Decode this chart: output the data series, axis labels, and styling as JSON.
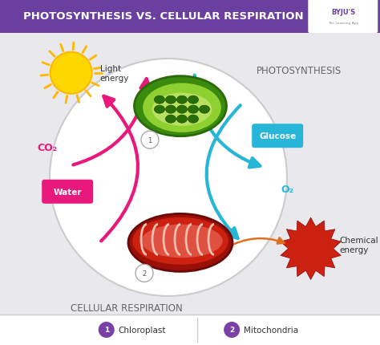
{
  "title": "PHOTOSYNTHESIS VS. CELLULAR RESPIRATION",
  "bg_color": "#e8e8ed",
  "title_bg": "#6b3fa0",
  "title_color": "#ffffff",
  "title_fontsize": 9.5,
  "pink_color": "#e8187c",
  "blue_color": "#27b5d8",
  "orange_color": "#e07020",
  "water_label": "Water",
  "co2_label": "CO₂",
  "glucose_label": "Glucose",
  "o2_label": "O₂",
  "light_label": "Light\nenergy",
  "chemical_label": "Chemical\nenergy",
  "photosynthesis_label": "PHOTOSYNTHESIS",
  "respiration_label": "CELLULAR RESPIRATION",
  "legend_1": "Chloroplast",
  "legend_2": "Mitochondria",
  "byju_color": "#6b3fa0",
  "sun_color": "#FFD700",
  "sun_ray_color": "#FFB800",
  "chloro_outer": "#4a9e20",
  "chloro_inner": "#8cd040",
  "chloro_grana": "#2a6e08",
  "mito_outer": "#bb1a10",
  "mito_inner": "#e05040",
  "mito_crista": "#f0a090",
  "chem_color": "#cc2010"
}
